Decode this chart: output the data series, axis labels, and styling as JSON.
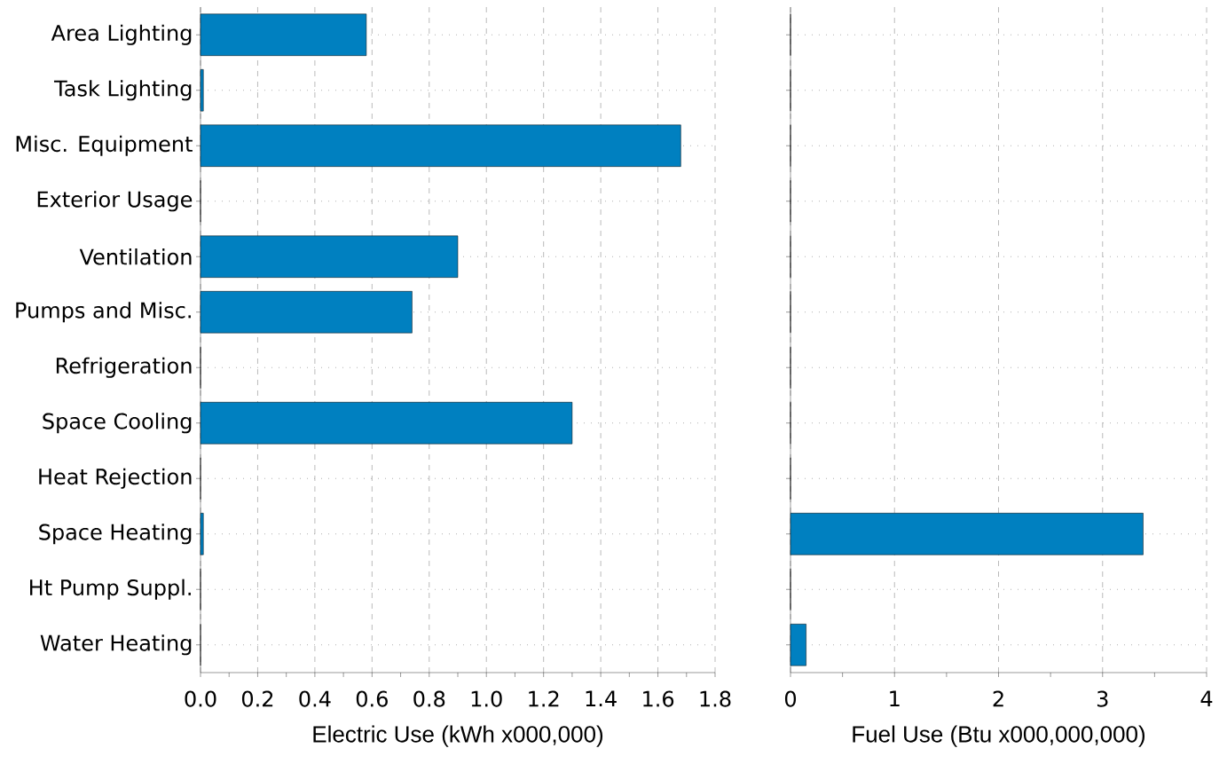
{
  "chart_data": [
    {
      "type": "bar",
      "orientation": "horizontal",
      "xlabel": "Electric Use (kWh x000,000)",
      "categories": [
        "Area Lighting",
        "Task Lighting",
        "Misc. Equipment",
        "Exterior Usage",
        "Ventilation",
        "Pumps and Misc.",
        "Refrigeration",
        "Space Cooling",
        "Heat Rejection",
        "Space Heating",
        "Ht Pump Suppl.",
        "Water Heating"
      ],
      "values": [
        0.58,
        0.01,
        1.68,
        0,
        0.9,
        0.74,
        0,
        1.3,
        0,
        0.01,
        0,
        0
      ],
      "color": "#0080c0",
      "xlim": [
        0,
        1.8
      ],
      "xticks": [
        {
          "value": 0,
          "label": "0.0"
        },
        {
          "value": 0.1,
          "label": null
        },
        {
          "value": 0.2,
          "label": "0.2"
        },
        {
          "value": 0.3,
          "label": null
        },
        {
          "value": 0.4,
          "label": "0.4"
        },
        {
          "value": 0.5,
          "label": null
        },
        {
          "value": 0.6,
          "label": "0.6"
        },
        {
          "value": 0.7,
          "label": null
        },
        {
          "value": 0.8,
          "label": "0.8"
        },
        {
          "value": 0.9,
          "label": null
        },
        {
          "value": 1,
          "label": "1.0"
        },
        {
          "value": 1.1,
          "label": null
        },
        {
          "value": 1.2,
          "label": "1.2"
        },
        {
          "value": 1.3,
          "label": null
        },
        {
          "value": 1.4,
          "label": "1.4"
        },
        {
          "value": 1.5,
          "label": null
        },
        {
          "value": 1.6,
          "label": "1.6"
        },
        {
          "value": 1.7,
          "label": null
        },
        {
          "value": 1.8,
          "label": "1.8"
        }
      ],
      "grid": true
    },
    {
      "type": "bar",
      "orientation": "horizontal",
      "xlabel": "Fuel Use (Btu x000,000,000)",
      "values": [
        0,
        0,
        0,
        0,
        0,
        0,
        0,
        0,
        0,
        3.39,
        0,
        0.15
      ],
      "categories": [
        null,
        null,
        null,
        null,
        null,
        null,
        null,
        null,
        null,
        null,
        null,
        null
      ],
      "color": "#0080c0",
      "xlim": [
        0,
        4
      ],
      "xticks": [
        0,
        {
          "value": 0.5,
          "label": null
        },
        1,
        {
          "value": 1.5,
          "label": null
        },
        2,
        {
          "value": 2.5,
          "label": null
        },
        3,
        {
          "value": 3.5,
          "label": null
        },
        4
      ],
      "grid": true,
      "tick_labels": "x"
    }
  ]
}
